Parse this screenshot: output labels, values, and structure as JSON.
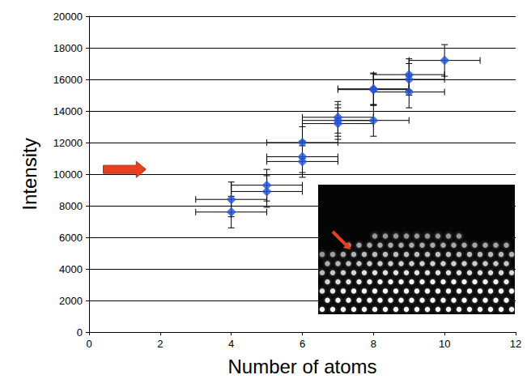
{
  "chart_data": {
    "type": "scatter",
    "x_label": "Number of atoms",
    "y_label": "Intensity",
    "xlim": [
      0,
      12
    ],
    "xticks": [
      0,
      2,
      4,
      6,
      8,
      10,
      12
    ],
    "ylim": [
      0,
      20000
    ],
    "yticks": [
      0,
      2000,
      4000,
      6000,
      8000,
      10000,
      12000,
      14000,
      16000,
      18000,
      20000
    ],
    "grid": true,
    "marker": "diamond",
    "color": "#2255dd",
    "x": [
      4,
      4,
      5,
      5,
      6,
      6,
      6,
      7,
      7,
      7,
      8,
      8,
      8,
      9,
      9,
      9,
      10
    ],
    "values": [
      8400,
      7600,
      9300,
      8900,
      12000,
      11100,
      10800,
      13600,
      13400,
      13200,
      15400,
      15350,
      13400,
      16300,
      16000,
      15200,
      17200
    ],
    "x_error": [
      1,
      1,
      1,
      1,
      1,
      1,
      1,
      1,
      1,
      1,
      1,
      1,
      1,
      1,
      1,
      1,
      1
    ],
    "y_error": [
      1100,
      1000,
      1000,
      1000,
      1000,
      1000,
      1000,
      1000,
      1000,
      1000,
      1000,
      1000,
      1000,
      1000,
      1000,
      1000,
      1000
    ],
    "annotation_arrow": {
      "x_start": 0.4,
      "x_end": 1.6,
      "y": 10300,
      "color": "#e8401c"
    }
  }
}
